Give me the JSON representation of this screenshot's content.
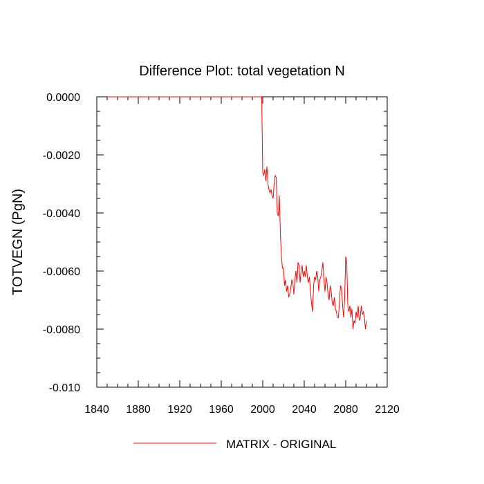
{
  "chart_data": {
    "type": "line",
    "title": "Difference Plot: total vegetation N",
    "xlabel": "",
    "ylabel": "TOTVEGN  (PgN)",
    "xlim": [
      1840,
      2120
    ],
    "ylim": [
      -0.01,
      0.0
    ],
    "x_ticks": [
      1840,
      1880,
      1920,
      1960,
      2000,
      2040,
      2080,
      2120
    ],
    "x_tick_labels": [
      "1840",
      "1880",
      "1920",
      "1960",
      "2000",
      "2040",
      "2080",
      "2120"
    ],
    "y_ticks": [
      0.0,
      -0.002,
      -0.004,
      -0.006,
      -0.008,
      -0.01
    ],
    "y_tick_labels": [
      "0.0000",
      "-0.0020",
      "-0.0040",
      "-0.0060",
      "-0.0080",
      "-0.010"
    ],
    "legend": {
      "placement": "bottom-center"
    },
    "series": [
      {
        "name": "MATRIX - ORIGINAL",
        "color": "#ff0000",
        "x": [
          1850,
          1900,
          1950,
          1999,
          2000,
          2001,
          2002,
          2003,
          2004,
          2005,
          2006,
          2007,
          2008,
          2009,
          2010,
          2011,
          2012,
          2013,
          2014,
          2015,
          2016,
          2017,
          2018,
          2019,
          2020,
          2021,
          2022,
          2023,
          2024,
          2025,
          2026,
          2027,
          2028,
          2029,
          2030,
          2031,
          2032,
          2033,
          2034,
          2035,
          2036,
          2037,
          2038,
          2039,
          2040,
          2041,
          2042,
          2043,
          2044,
          2045,
          2046,
          2047,
          2048,
          2049,
          2050,
          2051,
          2052,
          2053,
          2054,
          2055,
          2056,
          2057,
          2058,
          2059,
          2060,
          2061,
          2062,
          2063,
          2064,
          2065,
          2066,
          2067,
          2068,
          2069,
          2070,
          2071,
          2072,
          2073,
          2074,
          2075,
          2076,
          2077,
          2078,
          2079,
          2080,
          2081,
          2082,
          2083,
          2084,
          2085,
          2086,
          2087,
          2088,
          2089,
          2090,
          2091,
          2092,
          2093,
          2094,
          2095,
          2096,
          2097,
          2098,
          2099,
          2100
        ],
        "values": [
          0.0,
          0.0,
          0.0,
          0.0,
          -0.0026,
          -0.0027,
          -0.0025,
          -0.0029,
          -0.0024,
          -0.003,
          -0.0032,
          -0.0033,
          -0.0032,
          -0.0034,
          -0.0035,
          -0.003,
          -0.0027,
          -0.0028,
          -0.004,
          -0.0041,
          -0.0034,
          -0.0047,
          -0.0055,
          -0.0059,
          -0.0059,
          -0.0065,
          -0.0063,
          -0.0067,
          -0.0065,
          -0.0069,
          -0.0068,
          -0.0066,
          -0.0063,
          -0.0064,
          -0.0068,
          -0.0063,
          -0.006,
          -0.0064,
          -0.0057,
          -0.0058,
          -0.0064,
          -0.006,
          -0.0058,
          -0.0062,
          -0.006,
          -0.0062,
          -0.0058,
          -0.0062,
          -0.0064,
          -0.0062,
          -0.0067,
          -0.0071,
          -0.0074,
          -0.0065,
          -0.0062,
          -0.0063,
          -0.006,
          -0.0062,
          -0.0067,
          -0.0063,
          -0.0062,
          -0.006,
          -0.0057,
          -0.0063,
          -0.0067,
          -0.0062,
          -0.0064,
          -0.0068,
          -0.007,
          -0.0065,
          -0.0067,
          -0.0071,
          -0.0072,
          -0.0069,
          -0.0073,
          -0.0074,
          -0.0076,
          -0.0076,
          -0.007,
          -0.0065,
          -0.0066,
          -0.0072,
          -0.0076,
          -0.0069,
          -0.0055,
          -0.0057,
          -0.0072,
          -0.0074,
          -0.0072,
          -0.0076,
          -0.0073,
          -0.008,
          -0.0077,
          -0.0078,
          -0.0074,
          -0.0076,
          -0.0072,
          -0.0077,
          -0.0076,
          -0.0072,
          -0.0075,
          -0.0074,
          -0.0076,
          -0.008,
          -0.0077
        ]
      }
    ]
  }
}
